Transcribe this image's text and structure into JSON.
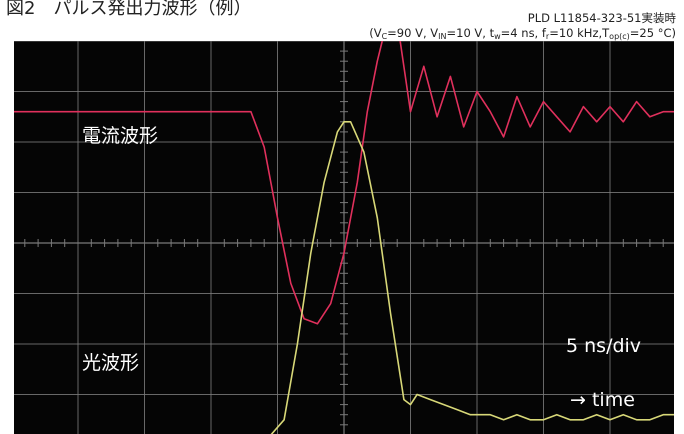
{
  "figure_title": "図2　パルス発出力波形（例）",
  "conditions_line1": "PLD L11854-323-51実装時",
  "conditions_line2": {
    "prefix": "(V",
    "vc_sub": "C",
    "vc_val": "=90 V, V",
    "vin_sub": "IN",
    "vin_val": "=10 V, t",
    "tw_sub": "w",
    "tw_val": "=4 ns, f",
    "fr_sub": "r",
    "fr_val": "=10 kHz,T",
    "top_sub": "op(c)",
    "top_val": "=25 °C)"
  },
  "chart_data": {
    "type": "line",
    "title": "図2　パルス発出力波形（例）",
    "xlabel": "time",
    "timebase": "5 ns/div",
    "divisions": {
      "x": 10,
      "y": 8
    },
    "grid": true,
    "background_color": "#050505",
    "grid_color": "#7a7a7a",
    "annotations": [
      "電流波形",
      "光波形",
      "5 ns/div",
      "→ time"
    ],
    "series": [
      {
        "name": "電流波形",
        "color": "#e0305c",
        "x": [
          -5.1,
          -4.0,
          -3.0,
          -2.0,
          -1.4,
          -1.2,
          -1.0,
          -0.8,
          -0.6,
          -0.4,
          -0.2,
          0.0,
          0.2,
          0.35,
          0.5,
          0.65,
          0.8,
          1.0,
          1.2,
          1.4,
          1.6,
          1.8,
          2.0,
          2.2,
          2.4,
          2.6,
          2.8,
          3.0,
          3.2,
          3.4,
          3.6,
          3.8,
          4.0,
          4.2,
          4.4,
          4.6,
          4.8,
          5.0
        ],
        "y": [
          2.6,
          2.6,
          2.6,
          2.6,
          2.6,
          1.9,
          0.5,
          -0.8,
          -1.5,
          -1.6,
          -1.2,
          -0.2,
          1.2,
          2.6,
          3.6,
          4.4,
          4.4,
          2.6,
          3.5,
          2.5,
          3.3,
          2.3,
          3.0,
          2.6,
          2.1,
          2.9,
          2.3,
          2.8,
          2.5,
          2.2,
          2.7,
          2.4,
          2.7,
          2.4,
          2.8,
          2.5,
          2.6,
          2.6
        ]
      },
      {
        "name": "光波形",
        "color": "#d8d878",
        "x": [
          -5.1,
          -4.0,
          -3.0,
          -2.0,
          -1.1,
          -0.9,
          -0.7,
          -0.5,
          -0.3,
          -0.1,
          0.0,
          0.1,
          0.3,
          0.5,
          0.7,
          0.9,
          1.0,
          1.1,
          1.3,
          1.5,
          1.7,
          1.9,
          2.0,
          2.2,
          2.4,
          2.6,
          2.8,
          3.0,
          3.2,
          3.4,
          3.6,
          3.8,
          4.0,
          4.2,
          4.4,
          4.6,
          4.8,
          5.0
        ],
        "y": [
          -3.8,
          -3.8,
          -3.8,
          -3.8,
          -3.8,
          -3.5,
          -2.0,
          -0.2,
          1.2,
          2.2,
          2.4,
          2.4,
          1.8,
          0.5,
          -1.4,
          -3.1,
          -3.2,
          -3.0,
          -3.1,
          -3.2,
          -3.3,
          -3.4,
          -3.4,
          -3.4,
          -3.5,
          -3.4,
          -3.5,
          -3.5,
          -3.4,
          -3.5,
          -3.5,
          -3.4,
          -3.5,
          -3.4,
          -3.5,
          -3.5,
          -3.4,
          -3.4
        ]
      }
    ]
  }
}
